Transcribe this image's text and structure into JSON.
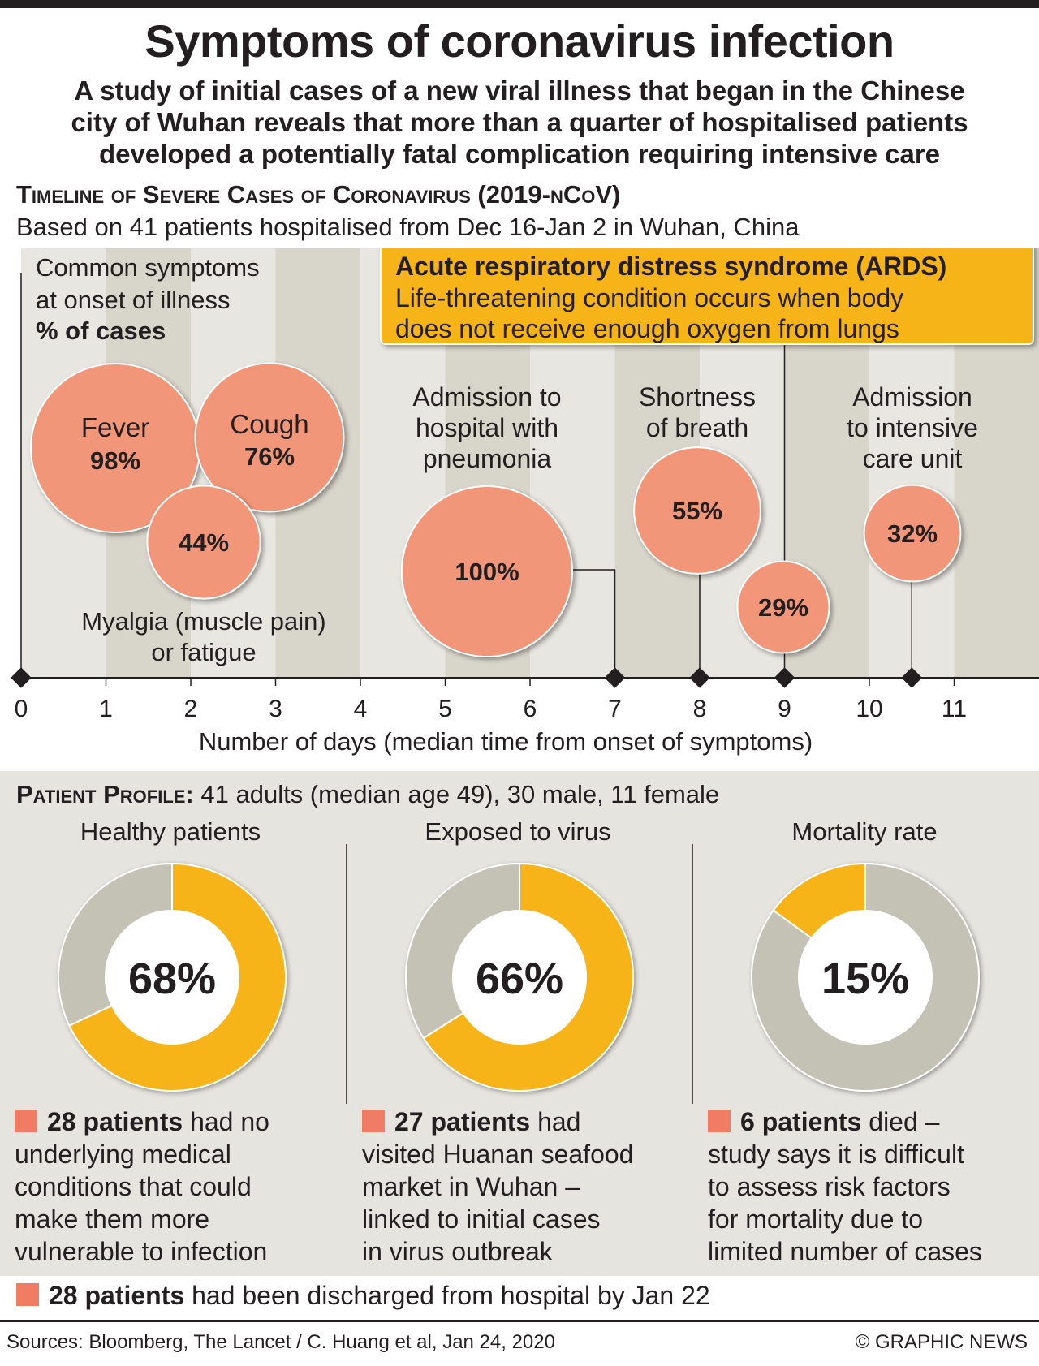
{
  "header": {
    "title": "Symptoms of coronavirus infection",
    "subtitle_lines": [
      "A study of initial cases of a new viral illness that began in the Chinese",
      "city of Wuhan reveals that more than a quarter of hospitalised patients",
      "developed a potentially fatal complication requiring intensive care"
    ]
  },
  "timeline": {
    "title": "Timeline of Severe Cases of Coronavirus (2019-nCoV)",
    "subtitle": "Based on 41 patients hospitalised from Dec 16-Jan 2 in Wuhan, China",
    "symptoms_heading": [
      "Common symptoms",
      "at onset of illness"
    ],
    "symptoms_unit": "% of cases",
    "ards": {
      "title": "Acute respiratory distress syndrome (ARDS)",
      "lines": [
        "Life-threatening condition occurs when body",
        "does not receive enough oxygen from lungs"
      ]
    },
    "myalgia_label": [
      "Myalgia (muscle pain)",
      "or fatigue"
    ],
    "xlabel": "Number of days (median time from onset of symptoms)"
  },
  "colors": {
    "bubble": "#f29679",
    "ards": "#f7b418",
    "donut_fill": "#f7b418",
    "donut_rest": "#c4c2b5",
    "band_light": "#e8e6e1",
    "band_dark": "#d8d6cb",
    "bullet": "#f07d63"
  },
  "chart_data": [
    {
      "type": "scatter",
      "title": "Timeline of Severe Cases of Coronavirus (2019-nCoV)",
      "xlabel": "Number of days (median time from onset of symptoms)",
      "ylabel": "",
      "x_ticks": [
        0,
        1,
        2,
        3,
        4,
        5,
        6,
        7,
        8,
        9,
        10,
        11
      ],
      "xlim": [
        0,
        12
      ],
      "grid": "alternating vertical bands",
      "onset_symptoms": [
        {
          "label": "Fever",
          "value": "98%",
          "pct": 98
        },
        {
          "label": "Cough",
          "value": "76%",
          "pct": 76
        },
        {
          "label": "",
          "value": "44%",
          "pct": 44
        }
      ],
      "events": [
        {
          "label_lines": [
            "Admission to",
            "hospital with",
            "pneumonia"
          ],
          "value": "100%",
          "pct": 100,
          "day": 7
        },
        {
          "label_lines": [
            "Shortness",
            "of breath"
          ],
          "value": "55%",
          "pct": 55,
          "day": 8
        },
        {
          "label_lines": [],
          "value": "29%",
          "pct": 29,
          "day": 9,
          "note": "ARDS"
        },
        {
          "label_lines": [
            "Admission",
            "to intensive",
            "care unit"
          ],
          "value": "32%",
          "pct": 32,
          "day": 10.5
        }
      ]
    },
    {
      "type": "pie",
      "title": "Healthy patients",
      "center_label": "68%",
      "slices": [
        {
          "label": "no underlying conditions",
          "value": 68
        },
        {
          "label": "",
          "value": 32
        }
      ]
    },
    {
      "type": "pie",
      "title": "Exposed to virus",
      "center_label": "66%",
      "slices": [
        {
          "label": "visited Huanan seafood market",
          "value": 66
        },
        {
          "label": "",
          "value": 34
        }
      ]
    },
    {
      "type": "pie",
      "title": "Mortality rate",
      "center_label": "15%",
      "slices": [
        {
          "label": "died",
          "value": 15
        },
        {
          "label": "",
          "value": 85
        }
      ]
    }
  ],
  "profile": {
    "label": "Patient Profile:",
    "text": " 41 adults (median age 49), 30 male, 11 female",
    "columns": [
      {
        "bold": "28 patients",
        "lines": [
          " had no",
          "underlying medical",
          "conditions that could",
          "make them more",
          "vulnerable to infection"
        ]
      },
      {
        "bold": "27 patients",
        "lines": [
          " had",
          "visited Huanan seafood",
          "market in Wuhan –",
          "linked to initial cases",
          "in virus outbreak"
        ]
      },
      {
        "bold": "6 patients",
        "lines": [
          " died –",
          "study says it is difficult",
          "to assess risk factors",
          "for mortality due to",
          "limited number of cases"
        ]
      }
    ],
    "discharged_bold": "28 patients",
    "discharged_text": " had been discharged from hospital by Jan 22"
  },
  "footer": {
    "sources": "Sources: Bloomberg, The Lancet / C. Huang et al, Jan 24, 2020",
    "credit": "© GRAPHIC NEWS"
  }
}
